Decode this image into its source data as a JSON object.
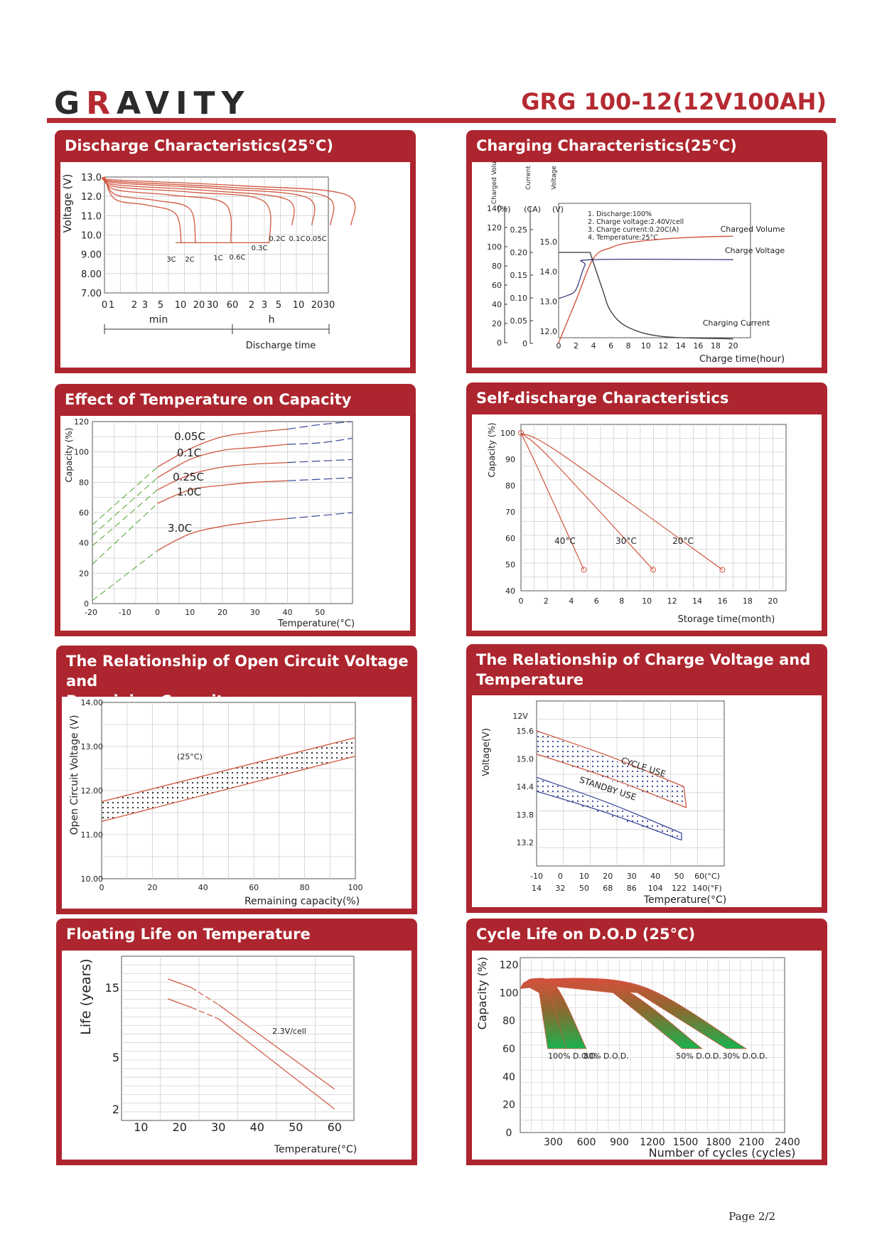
{
  "header": {
    "logo_g": "G",
    "logo_r": "R",
    "logo_rest": "AVITY",
    "model": "GRG 100-12(12V100AH)"
  },
  "footer": {
    "page": "Page 2/2"
  },
  "colors": {
    "brand": "#ad252e",
    "curve": "#d0563e",
    "dark": "#333333",
    "green": "#1fa54c",
    "blue_dash": "#3a4a9a"
  },
  "panels": {
    "discharge": {
      "title": "Discharge Characteristics(25°C)"
    },
    "charging": {
      "title": "Charging Characteristics(25°C)"
    },
    "temperature": {
      "title": "Effect of Temperature on Capacity"
    },
    "self_discharge": {
      "title": "Self-discharge Characteristics"
    },
    "ocv": {
      "title_line1": "The Relationship of Open Circuit Voltage and",
      "title_line2": "Remaining Capacity"
    },
    "charge_voltage": {
      "title_line1": "The Relationship of Charge Voltage and",
      "title_line2": "Temperature"
    },
    "floating": {
      "title": "Floating Life on Temperature"
    },
    "cycle": {
      "title": "Cycle Life on D.O.D (25°C)"
    }
  },
  "chart_data": [
    {
      "id": "discharge",
      "type": "line",
      "title": "Discharge Characteristics(25°C)",
      "ylabel": "Voltage (V)",
      "xlabel": "Discharge time",
      "yticks": [
        "13.0",
        "12.0",
        "11.0",
        "10.0",
        "9.00",
        "8.00",
        "7.00"
      ],
      "ylim": [
        7.0,
        13.0
      ],
      "xticks": [
        "0",
        "1",
        "2",
        "3",
        "5",
        "10",
        "20",
        "30",
        "60",
        "2",
        "3",
        "5",
        "10",
        "20",
        "30"
      ],
      "unit_min": "min",
      "unit_h": "h",
      "series": [
        {
          "name": "3C",
          "end_min": 5.5,
          "end_v": 9.6
        },
        {
          "name": "2C",
          "end_min": 8.5,
          "end_v": 9.6
        },
        {
          "name": "1C",
          "end_min": 35,
          "end_v": 9.6
        },
        {
          "name": "0.6C",
          "end_min": 60,
          "end_v": 9.6
        },
        {
          "name": "0.3C",
          "end_min": 200,
          "end_v": 10.5
        },
        {
          "name": "0.2C",
          "end_min": 300,
          "end_v": 10.5
        },
        {
          "name": "0.1C",
          "end_min": 600,
          "end_v": 10.5
        },
        {
          "name": "0.05C",
          "end_min": 1200,
          "end_v": 10.5
        }
      ]
    },
    {
      "id": "charging",
      "type": "line",
      "title": "Charging Characteristics(25°C)",
      "xlabel": "Charge time(hour)",
      "axis_headers": [
        "Charged Volume",
        "(%)",
        "Current",
        "(CA)",
        "Voltage",
        "(V)"
      ],
      "volume_ticks": [
        "140",
        "120",
        "100",
        "80",
        "60",
        "40",
        "20",
        "0"
      ],
      "current_ticks": [
        "0.25",
        "0.20",
        "0.15",
        "0.10",
        "0.05",
        "0"
      ],
      "voltage_ticks": [
        "15.0",
        "14.0",
        "13.0",
        "12.0"
      ],
      "xticks": [
        "0",
        "2",
        "4",
        "6",
        "8",
        "10",
        "12",
        "14",
        "16",
        "18",
        "20"
      ],
      "notes": [
        "1. Discharge:100%",
        "2. Charge voltage:2.40V/cell",
        "3. Charge current:0.20C(A)",
        "4. Temperature:25°C"
      ],
      "labels": [
        "Charged Volume",
        "Charge Voltage",
        "Charging Current"
      ],
      "series": [
        {
          "name": "Charged Volume",
          "x": [
            0,
            2,
            4,
            6,
            8,
            12,
            16,
            20
          ],
          "values": [
            0,
            44,
            88,
            99,
            104,
            108,
            110,
            111
          ]
        },
        {
          "name": "Charge Voltage",
          "x": [
            0,
            1,
            2,
            3,
            4,
            20
          ],
          "values": [
            13.1,
            13.2,
            13.4,
            14.2,
            14.4,
            14.4
          ]
        },
        {
          "name": "Charging Current",
          "x": [
            0,
            3.6,
            5,
            6,
            8,
            12,
            20
          ],
          "values": [
            0.2,
            0.2,
            0.12,
            0.07,
            0.035,
            0.015,
            0.01
          ]
        }
      ]
    },
    {
      "id": "temperature",
      "type": "line",
      "title": "Effect of Temperature on Capacity",
      "ylabel": "Capacity (%)",
      "xlabel": "Temperature(°C)",
      "yticks": [
        "120",
        "100",
        "80",
        "60",
        "40",
        "20",
        "0"
      ],
      "ylim": [
        0,
        120
      ],
      "xticks": [
        "-20",
        "-10",
        "0",
        "10",
        "20",
        "30",
        "40",
        "50"
      ],
      "xlim": [
        -20,
        60
      ],
      "series": [
        {
          "name": "0.05C",
          "x": [
            -20,
            0,
            10,
            20,
            30,
            40,
            50,
            60
          ],
          "values": [
            52,
            90,
            102,
            110,
            113,
            115,
            118,
            120
          ]
        },
        {
          "name": "0.1C",
          "x": [
            -20,
            0,
            10,
            20,
            30,
            40,
            50,
            60
          ],
          "values": [
            45,
            83,
            95,
            101,
            103,
            105,
            106,
            109
          ]
        },
        {
          "name": "0.25C",
          "x": [
            -20,
            0,
            10,
            20,
            30,
            40,
            50,
            60
          ],
          "values": [
            38,
            75,
            85,
            90,
            92,
            93,
            94,
            95
          ]
        },
        {
          "name": "1.0C",
          "x": [
            -20,
            0,
            10,
            20,
            30,
            40,
            50,
            60
          ],
          "values": [
            26,
            66,
            75,
            78,
            80,
            81,
            82,
            83
          ]
        },
        {
          "name": "3.0C",
          "x": [
            -20,
            0,
            10,
            20,
            30,
            40,
            50,
            60
          ],
          "values": [
            2,
            35,
            46,
            51,
            54,
            56,
            58,
            60
          ]
        }
      ]
    },
    {
      "id": "self_discharge",
      "type": "line",
      "title": "Self-discharge Characteristics",
      "ylabel": "Capacity (%)",
      "xlabel": "Storage time(month)",
      "yticks": [
        "100",
        "90",
        "80",
        "70",
        "60",
        "50",
        "40"
      ],
      "ylim": [
        40,
        100
      ],
      "xticks": [
        "0",
        "2",
        "4",
        "6",
        "8",
        "10",
        "12",
        "14",
        "16",
        "18",
        "20"
      ],
      "xlim": [
        0,
        20
      ],
      "series": [
        {
          "name": "40°C",
          "x": [
            0,
            5
          ],
          "values": [
            100,
            48
          ]
        },
        {
          "name": "30°C",
          "x": [
            0,
            10.5
          ],
          "values": [
            100,
            48
          ]
        },
        {
          "name": "20°C",
          "x": [
            0,
            16
          ],
          "values": [
            100,
            48
          ]
        }
      ]
    },
    {
      "id": "ocv",
      "type": "area",
      "title": "The Relationship of Open Circuit Voltage and Remaining Capacity",
      "ylabel": "Open Circuit Voltage (V)",
      "xlabel": "Remaining capacity(%)",
      "yticks": [
        "14.00",
        "13.00",
        "12.00",
        "11.00",
        "10.00"
      ],
      "ylim": [
        10,
        14
      ],
      "xticks": [
        "0",
        "20",
        "40",
        "60",
        "80",
        "100"
      ],
      "xlim": [
        0,
        100
      ],
      "annotation": "(25°C)",
      "band_upper": {
        "x": [
          0,
          100
        ],
        "values": [
          11.75,
          13.2
        ]
      },
      "band_lower": {
        "x": [
          0,
          100
        ],
        "values": [
          11.3,
          12.78
        ]
      }
    },
    {
      "id": "charge_voltage",
      "type": "area",
      "title": "The Relationship of Charge Voltage and Temperature",
      "ylabel": "Voltage(V)",
      "y_unit": "12V",
      "xlabel": "Temperature(°C)",
      "yticks": [
        "15.6",
        "15.0",
        "14.4",
        "13.8",
        "13.2"
      ],
      "ylim": [
        13.2,
        15.6
      ],
      "xticks_c": [
        "-10",
        "0",
        "10",
        "20",
        "30",
        "40",
        "50",
        "60(°C)"
      ],
      "xticks_f": [
        "14",
        "32",
        "50",
        "68",
        "86",
        "104",
        "122",
        "140(°F)"
      ],
      "xlim": [
        -10,
        60
      ],
      "bands": [
        {
          "name": "CYCLE USE",
          "upper": {
            "x": [
              -10,
              52
            ],
            "values": [
              15.6,
              14.4
            ]
          },
          "lower": {
            "x": [
              -10,
              53
            ],
            "values": [
              15.1,
              13.95
            ]
          }
        },
        {
          "name": "STANDBY USE",
          "upper": {
            "x": [
              -10,
              51
            ],
            "values": [
              14.6,
              13.4
            ]
          },
          "lower": {
            "x": [
              -10,
              51
            ],
            "values": [
              14.3,
              13.25
            ]
          }
        }
      ]
    },
    {
      "id": "floating",
      "type": "line",
      "title": "Floating Life on Temperature",
      "ylabel": "Life (years)",
      "xlabel": "Temperature(°C)",
      "yticks": [
        "15",
        "5",
        "2"
      ],
      "xticks": [
        "10",
        "20",
        "30",
        "40",
        "50",
        "60"
      ],
      "xlim": [
        5,
        65
      ],
      "annotation": "2.3V/cell",
      "series": [
        {
          "name": "upper",
          "x": [
            17,
            23,
            30,
            60
          ],
          "values": [
            16.5,
            15.0,
            13.2,
            2.8
          ]
        },
        {
          "name": "lower",
          "x": [
            17,
            23,
            30,
            60
          ],
          "values": [
            13.5,
            12.4,
            11.0,
            2.0
          ]
        }
      ]
    },
    {
      "id": "cycle",
      "type": "area",
      "title": "Cycle Life on D.O.D (25°C)",
      "ylabel": "Capacity (%)",
      "xlabel": "Number of cycles (cycles)",
      "yticks": [
        "120",
        "100",
        "80",
        "60",
        "40",
        "20",
        "0"
      ],
      "ylim": [
        0,
        120
      ],
      "xticks": [
        "300",
        "600",
        "900",
        "1200",
        "1500",
        "1800",
        "2100",
        "2400"
      ],
      "xlim": [
        0,
        2400
      ],
      "series": [
        {
          "name": "100% D.O.D.",
          "end_cycles": 430,
          "end_capacity": 60
        },
        {
          "name": "80% D.O.D.",
          "end_cycles": 600,
          "end_capacity": 60
        },
        {
          "name": "50% D.O.D.",
          "end_cycles": 1650,
          "end_capacity": 60
        },
        {
          "name": "30% D.O.D.",
          "end_cycles": 2050,
          "end_capacity": 60
        }
      ]
    }
  ]
}
